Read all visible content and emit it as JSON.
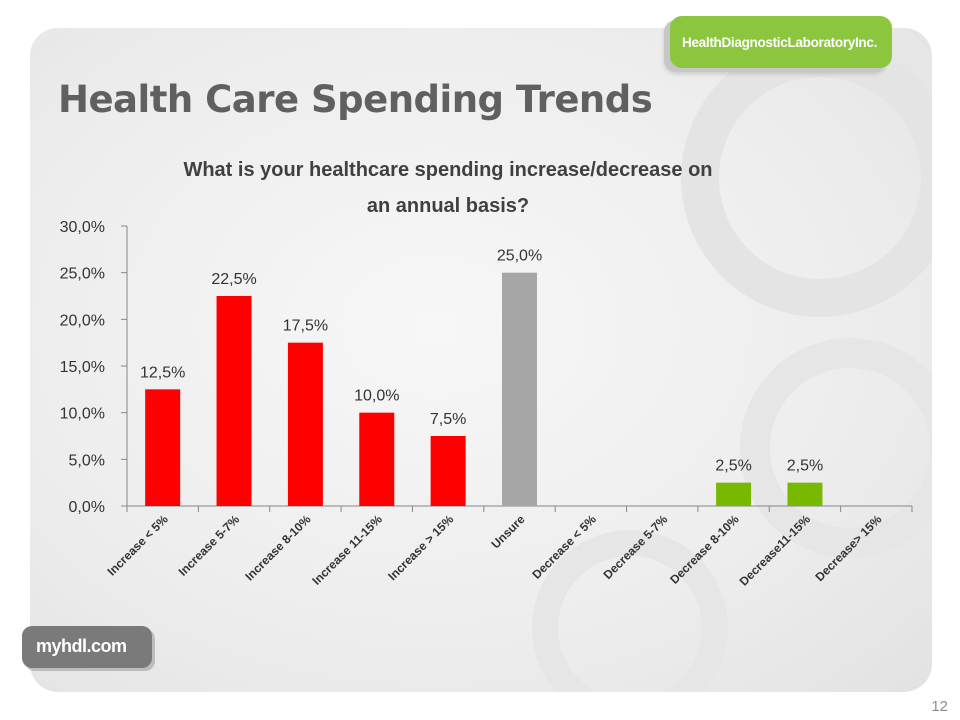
{
  "slide": {
    "title": "Health Care Spending Trends",
    "number": "12"
  },
  "logos": {
    "top_text": "HealthDiagnosticLaboratoryInc.",
    "bottom_text": "myhdl.com"
  },
  "colors": {
    "increase": "#ff0000",
    "unsure": "#a6a6a6",
    "decrease": "#77b800",
    "title": "#606060",
    "axis": "#868686"
  },
  "chart_data": {
    "type": "bar",
    "title": "What is your healthcare spending increase/decrease on an annual basis?",
    "categories": [
      "Increase < 5%",
      "Increase 5-7%",
      "Increase 8-10%",
      "Increase 11-15%",
      "Increase > 15%",
      "Unsure",
      "Decrease < 5%",
      "Decrease 5-7%",
      "Decrease 8-10%",
      "Decrease11-15%",
      "Decrease> 15%"
    ],
    "values": [
      12.5,
      22.5,
      17.5,
      10.0,
      7.5,
      25.0,
      0,
      0,
      2.5,
      2.5,
      0
    ],
    "value_labels": [
      "12,5%",
      "22,5%",
      "17,5%",
      "10,0%",
      "7,5%",
      "25,0%",
      "",
      "",
      "2,5%",
      "2,5%",
      ""
    ],
    "bar_colors": [
      "#ff0000",
      "#ff0000",
      "#ff0000",
      "#ff0000",
      "#ff0000",
      "#a6a6a6",
      "#77b800",
      "#77b800",
      "#77b800",
      "#77b800",
      "#77b800"
    ],
    "ylim": [
      0,
      30
    ],
    "yticks": [
      0,
      5,
      10,
      15,
      20,
      25,
      30
    ],
    "ytick_labels": [
      "0,0%",
      "5,0%",
      "10,0%",
      "15,0%",
      "20,0%",
      "25,0%",
      "30,0%"
    ],
    "xlabel": "",
    "ylabel": "",
    "grid": false,
    "legend": "none"
  }
}
